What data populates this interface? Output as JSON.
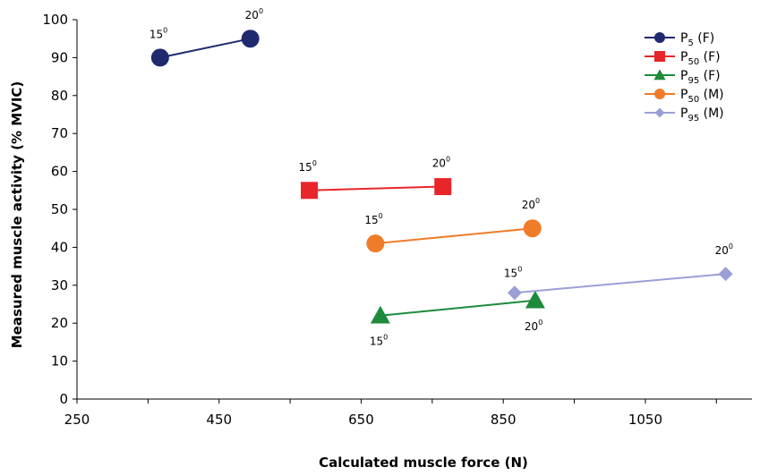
{
  "chart_data": {
    "type": "scatter",
    "title": "",
    "xlabel": "Calculated muscle force (N)",
    "ylabel": "Measured muscle activity (% MVIC)",
    "xlim": [
      250,
      1200
    ],
    "ylim": [
      0,
      100
    ],
    "xticks": [
      250,
      450,
      650,
      850,
      1050
    ],
    "yticks": [
      0,
      10,
      20,
      30,
      40,
      50,
      60,
      70,
      80,
      90,
      100
    ],
    "grid": false,
    "legend_position": "top-right",
    "series": [
      {
        "name": "P5 (F)",
        "legend_main": "P",
        "legend_sub": "5",
        "legend_tail": " (F)",
        "color": "#1f2a6e",
        "marker": "circle",
        "points": [
          {
            "x": 367,
            "y": 90,
            "label": "15",
            "label_sup": "0"
          },
          {
            "x": 494,
            "y": 95,
            "label": "20",
            "label_sup": "0"
          }
        ]
      },
      {
        "name": "P50 (F)",
        "legend_main": "P",
        "legend_sub": "50",
        "legend_tail": " (F)",
        "color": "#e8262a",
        "marker": "square",
        "points": [
          {
            "x": 577,
            "y": 55,
            "label": "15",
            "label_sup": "0"
          },
          {
            "x": 765,
            "y": 56,
            "label": "20",
            "label_sup": "0"
          }
        ]
      },
      {
        "name": "P95 (F)",
        "legend_main": "P",
        "legend_sub": "95",
        "legend_tail": " (F)",
        "color": "#1e8a3c",
        "marker": "triangle",
        "points": [
          {
            "x": 677,
            "y": 22,
            "label": "15",
            "label_sup": "0"
          },
          {
            "x": 895,
            "y": 26,
            "label": "20",
            "label_sup": "0"
          }
        ]
      },
      {
        "name": "P50 (M)",
        "legend_main": "P",
        "legend_sub": "50",
        "legend_tail": " (M)",
        "color": "#f07b28",
        "marker": "circle",
        "points": [
          {
            "x": 670,
            "y": 41,
            "label": "15",
            "label_sup": "0"
          },
          {
            "x": 891,
            "y": 45,
            "label": "20",
            "label_sup": "0"
          }
        ]
      },
      {
        "name": "P95 (M)",
        "legend_main": "P",
        "legend_sub": "95",
        "legend_tail": " (M)",
        "color": "#9b9fd6",
        "marker": "diamond",
        "points": [
          {
            "x": 866,
            "y": 28,
            "label": "15",
            "label_sup": "0"
          },
          {
            "x": 1163,
            "y": 33,
            "label": "20",
            "label_sup": "0"
          }
        ]
      }
    ]
  }
}
